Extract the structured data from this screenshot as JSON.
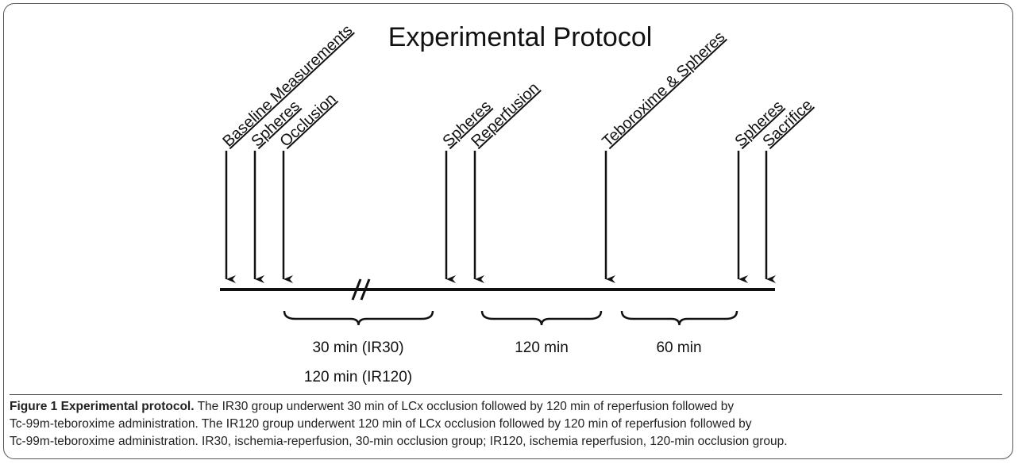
{
  "title": "Experimental Protocol",
  "events": [
    "Baseline Measurements",
    "Spheres",
    "Occlusion",
    "Spheres",
    "Reperfusion",
    "Teboroxime & Spheres",
    "Spheres",
    "Sacrifice"
  ],
  "intervals": [
    "30 min (IR30)",
    "120 min (IR120)",
    "120 min",
    "60 min"
  ],
  "caption": {
    "label": "Figure 1 Experimental protocol.",
    "lines": [
      " The IR30 group underwent 30 min of LCx occlusion followed by 120 min of reperfusion followed by",
      "Tc-99m-teboroxime administration. The IR120 group underwent 120 min of LCx occlusion followed by 120 min of reperfusion followed by",
      "Tc-99m-teboroxime administration. IR30, ischemia-reperfusion, 30-min occlusion group; IR120, ischemia reperfusion, 120-min occlusion group."
    ]
  }
}
